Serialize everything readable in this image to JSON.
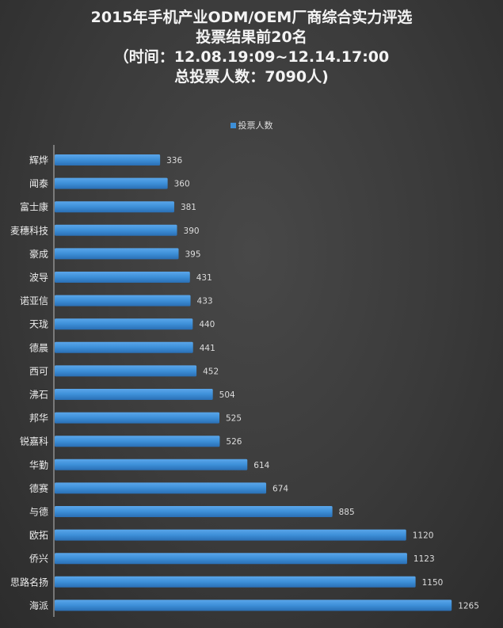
{
  "chart_data": {
    "type": "bar",
    "orientation": "horizontal",
    "title_lines": [
      "2015年手机产业ODM/OEM厂商综合实力评选",
      "投票结果前20名",
      "（时间：12.08.19:09~12.14.17:00",
      "总投票人数：7090人)"
    ],
    "legend": "投票人数",
    "legend_position": "top",
    "grid": false,
    "categories": [
      "辉烨",
      "闻泰",
      "富士康",
      "麦穗科技",
      "豪成",
      "波导",
      "诺亚信",
      "天珑",
      "德晨",
      "西可",
      "沸石",
      "邦华",
      "锐嘉科",
      "华勤",
      "德赛",
      "与德",
      "欧拓",
      "侨兴",
      "思路名扬",
      "海派"
    ],
    "series": [
      {
        "name": "投票人数",
        "values": [
          336,
          360,
          381,
          390,
          395,
          431,
          433,
          440,
          441,
          452,
          504,
          525,
          526,
          614,
          674,
          885,
          1120,
          1123,
          1150,
          1265
        ]
      }
    ],
    "xlim": [
      0,
      1300
    ],
    "colors": {
      "bar": "#3d8fd8",
      "background": "#3a3a3a"
    }
  }
}
